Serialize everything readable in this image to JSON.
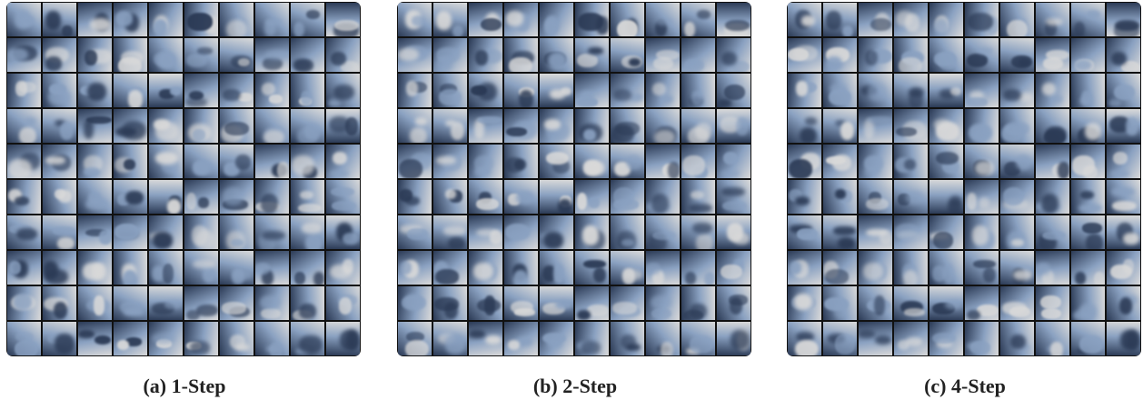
{
  "panels": [
    {
      "id": "a",
      "caption": "(a) 1-Step"
    },
    {
      "id": "b",
      "caption": "(b) 2-Step"
    },
    {
      "id": "c",
      "caption": "(c) 4-Step"
    }
  ],
  "grid": {
    "rows": 10,
    "cols": 10
  }
}
